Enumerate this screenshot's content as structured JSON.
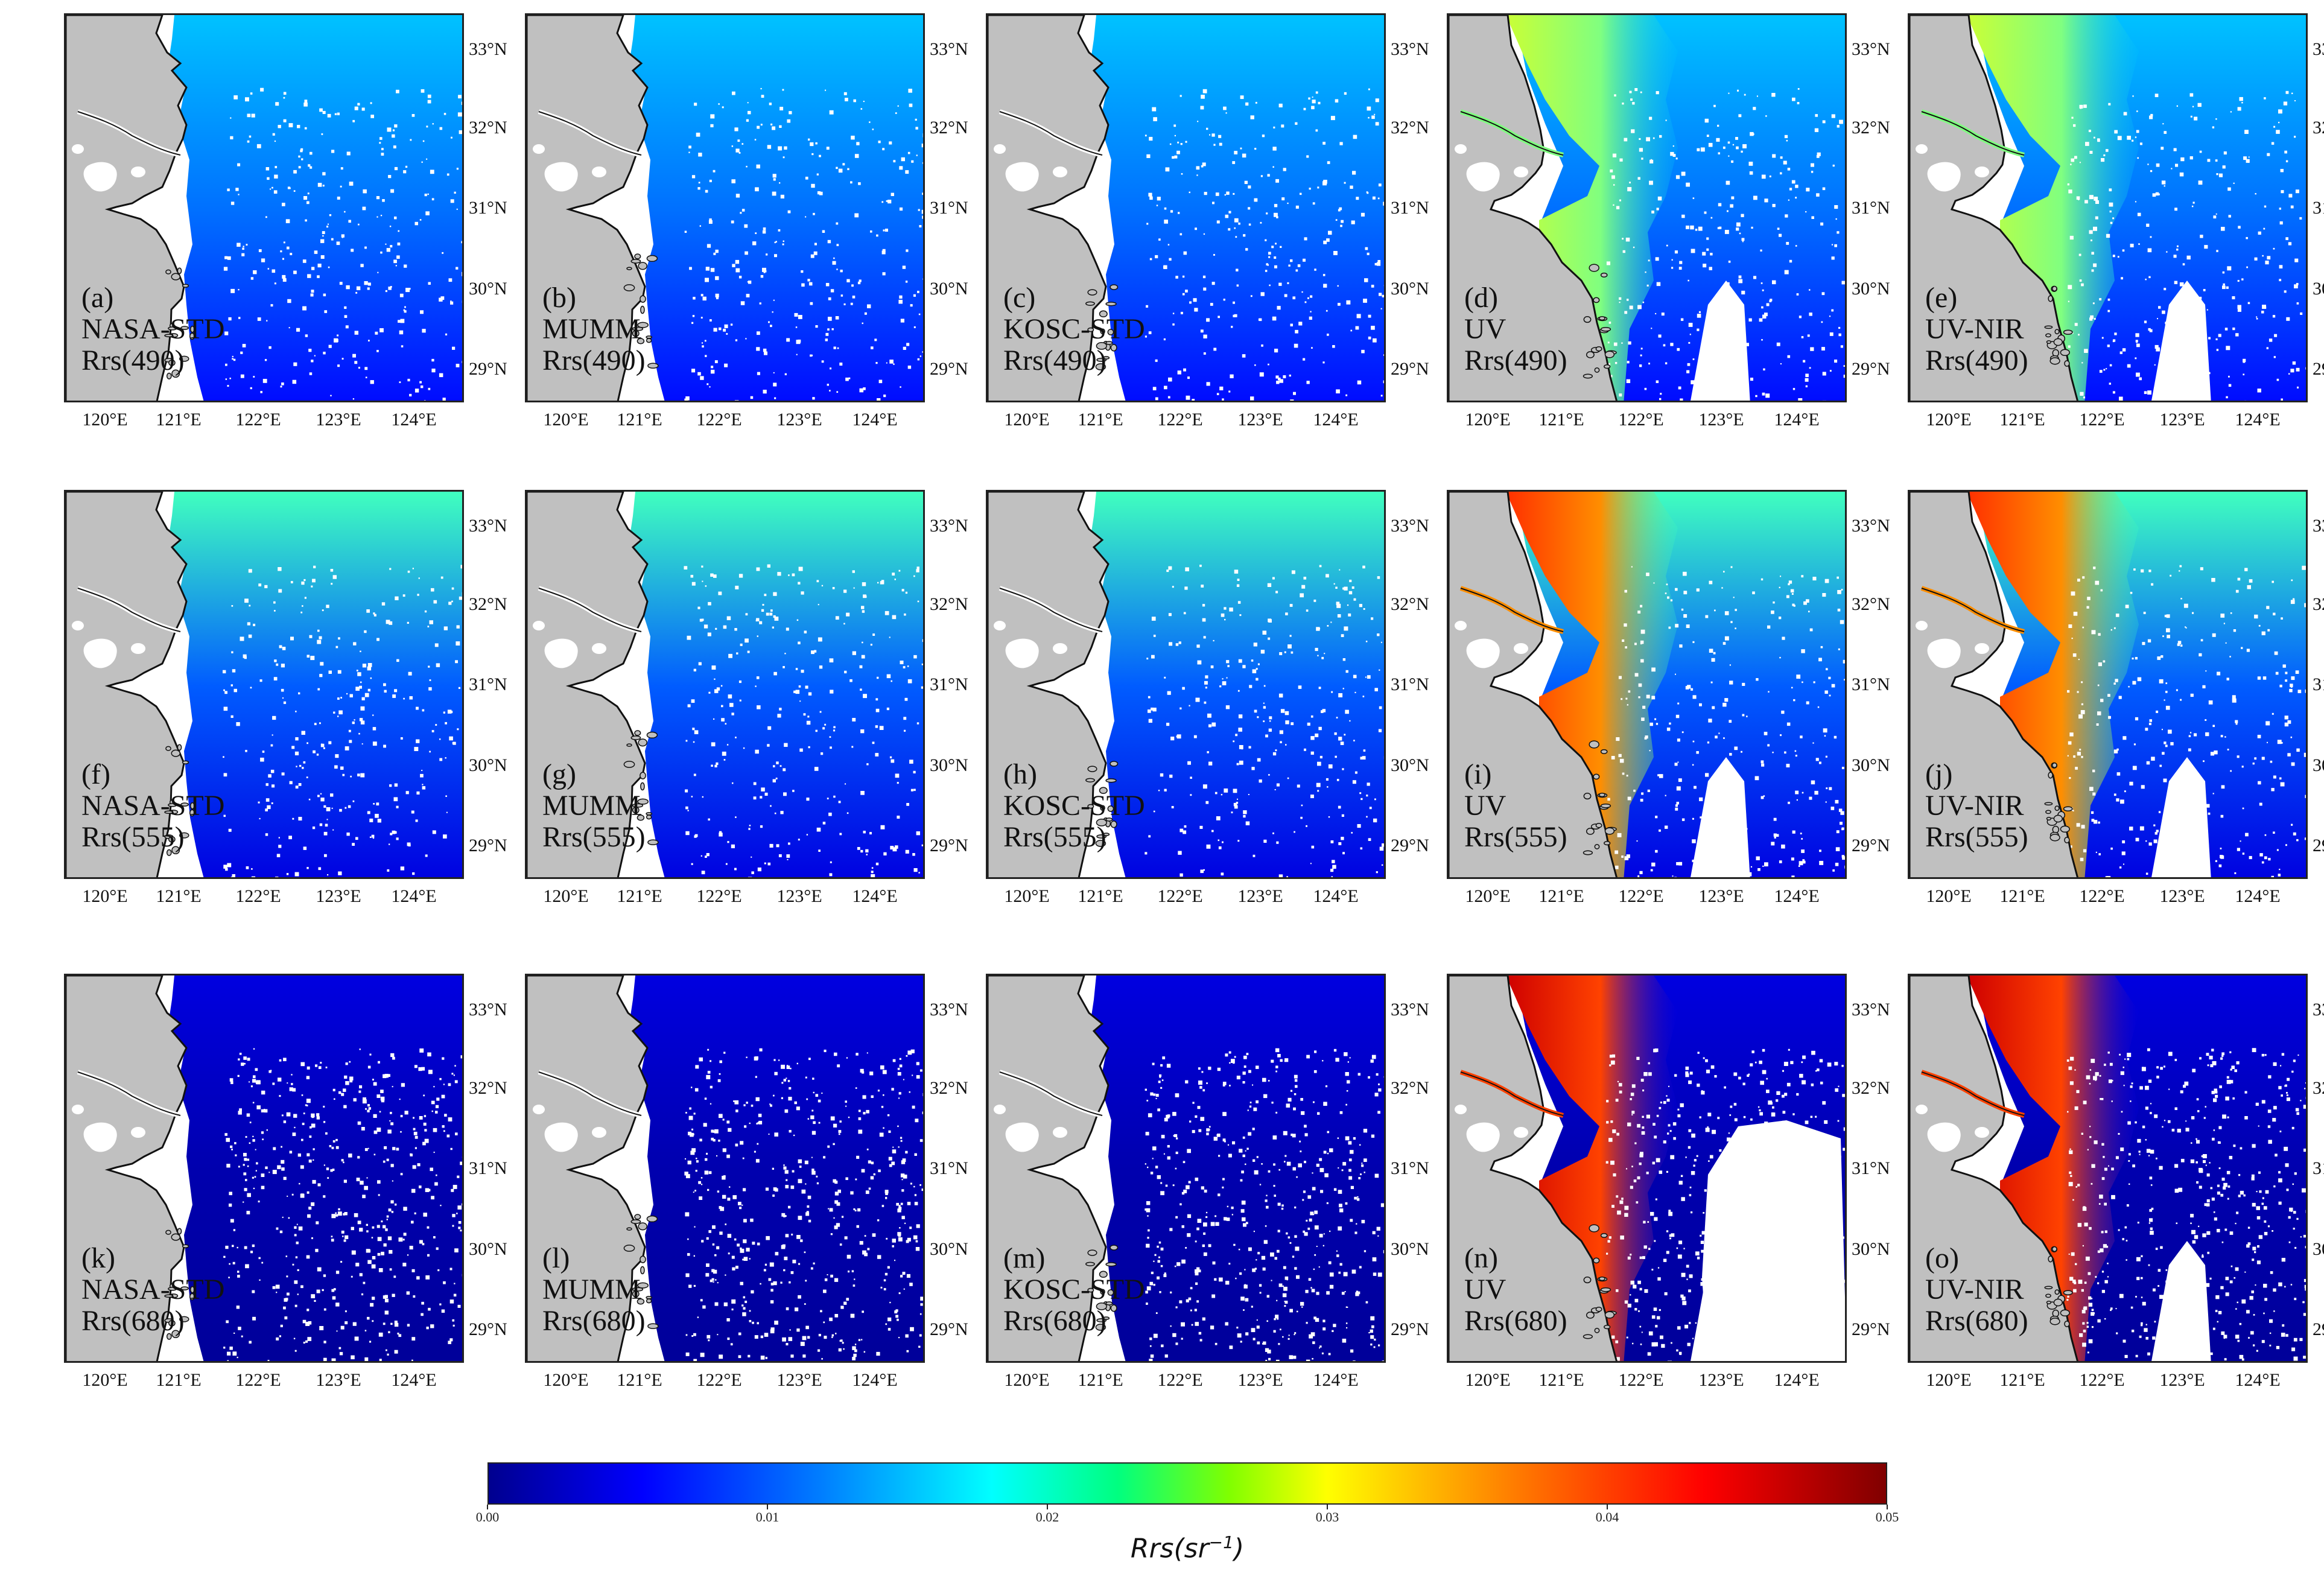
{
  "figure": {
    "lat_ticks": [
      "33°N",
      "32°N",
      "31°N",
      "30°N",
      "29°N"
    ],
    "lon_ticks": [
      "120°E",
      "121°E",
      "122°E",
      "123°E",
      "124°E"
    ],
    "rows": [
      {
        "band": "Rrs(490)",
        "panels": [
          {
            "letter": "(a)",
            "method": "NASA-STD"
          },
          {
            "letter": "(b)",
            "method": "MUMM"
          },
          {
            "letter": "(c)",
            "method": "KOSC-STD"
          },
          {
            "letter": "(d)",
            "method": "UV"
          },
          {
            "letter": "(e)",
            "method": "UV-NIR"
          }
        ]
      },
      {
        "band": "Rrs(555)",
        "panels": [
          {
            "letter": "(f)",
            "method": "NASA-STD"
          },
          {
            "letter": "(g)",
            "method": "MUMM"
          },
          {
            "letter": "(h)",
            "method": "KOSC-STD"
          },
          {
            "letter": "(i)",
            "method": "UV"
          },
          {
            "letter": "(j)",
            "method": "UV-NIR"
          }
        ]
      },
      {
        "band": "Rrs(680)",
        "panels": [
          {
            "letter": "(k)",
            "method": "NASA-STD"
          },
          {
            "letter": "(l)",
            "method": "MUMM"
          },
          {
            "letter": "(m)",
            "method": "KOSC-STD"
          },
          {
            "letter": "(n)",
            "method": "UV"
          },
          {
            "letter": "(o)",
            "method": "UV-NIR"
          }
        ]
      }
    ]
  },
  "colorbar": {
    "label": "Rrs(sr^-1)",
    "min": 0.0,
    "max": 0.05,
    "ticks": [
      "0.00",
      "0.01",
      "0.02",
      "0.03",
      "0.04",
      "0.05"
    ],
    "colormap": "jet",
    "colors": [
      "#00008f",
      "#0000ff",
      "#00ffff",
      "#ffff00",
      "#ff0000",
      "#800000"
    ]
  },
  "colors": {
    "land": "#c0c0c0",
    "coast": "#111111",
    "no_data": "#ffffff"
  }
}
